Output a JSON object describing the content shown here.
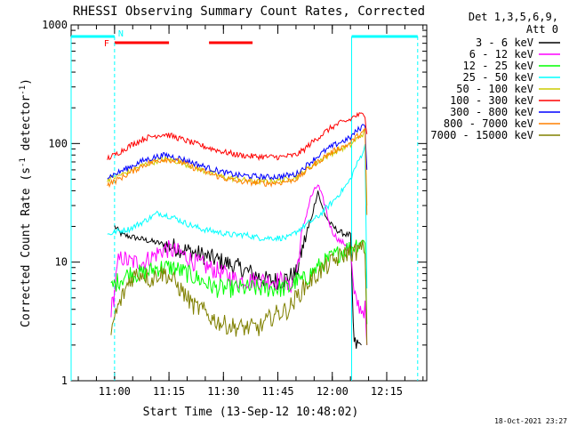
{
  "chart_data": {
    "type": "line",
    "title": "RHESSI Observing Summary Count Rates, Corrected",
    "xlabel": "Start Time (13-Sep-12 10:48:02)",
    "ylabel_pre": "Corrected Count Rate (s",
    "ylabel_mid": " detector",
    "ylabel_post": ")",
    "ylabel_sup": "-1",
    "y_scale": "log",
    "ylim": [
      1,
      1000
    ],
    "xlim_minutes": [
      0,
      98
    ],
    "x_ticks": [
      {
        "label": "11:00",
        "minute": 11.97
      },
      {
        "label": "11:15",
        "minute": 26.97
      },
      {
        "label": "11:30",
        "minute": 41.97
      },
      {
        "label": "11:45",
        "minute": 56.97
      },
      {
        "label": "12:00",
        "minute": 71.97
      },
      {
        "label": "12:15",
        "minute": 86.97
      }
    ],
    "y_ticks": [
      {
        "label": "1",
        "value": 1
      },
      {
        "label": "10",
        "value": 10
      },
      {
        "label": "100",
        "value": 100
      },
      {
        "label": "1000",
        "value": 1000
      }
    ],
    "legend_title_1": "Det 1,3,5,6,9,",
    "legend_title_2": "Att 0",
    "legend_placement": "right",
    "series": [
      {
        "name": "3 - 6 keV",
        "color": "#000000",
        "points": [
          [
            12,
            20
          ],
          [
            14,
            17
          ],
          [
            18,
            16
          ],
          [
            22,
            15
          ],
          [
            26,
            14
          ],
          [
            30,
            13
          ],
          [
            34,
            12
          ],
          [
            38,
            11
          ],
          [
            42,
            10
          ],
          [
            46,
            9
          ],
          [
            50,
            8
          ],
          [
            54,
            7
          ],
          [
            58,
            7
          ],
          [
            62,
            8
          ],
          [
            64,
            14
          ],
          [
            66,
            22
          ],
          [
            67,
            30
          ],
          [
            68,
            40
          ],
          [
            69,
            30
          ],
          [
            70,
            25
          ],
          [
            71,
            22
          ],
          [
            72,
            20
          ],
          [
            74,
            18
          ],
          [
            76,
            17
          ],
          [
            77,
            17
          ],
          [
            77.5,
            5
          ],
          [
            78,
            2
          ],
          [
            80,
            2
          ]
        ]
      },
      {
        "name": "6 - 12 keV",
        "color": "#ff00ff",
        "points": [
          [
            11,
            4
          ],
          [
            11.8,
            5
          ],
          [
            12,
            6
          ],
          [
            13,
            10
          ],
          [
            14,
            11
          ],
          [
            16,
            10
          ],
          [
            20,
            10
          ],
          [
            24,
            12
          ],
          [
            26,
            13
          ],
          [
            30,
            12
          ],
          [
            34,
            10
          ],
          [
            38,
            9
          ],
          [
            42,
            8
          ],
          [
            46,
            7
          ],
          [
            50,
            7
          ],
          [
            54,
            7
          ],
          [
            58,
            7
          ],
          [
            60,
            6
          ],
          [
            62,
            8
          ],
          [
            64,
            20
          ],
          [
            66,
            35
          ],
          [
            68,
            45
          ],
          [
            70,
            30
          ],
          [
            71,
            22
          ],
          [
            72,
            18
          ],
          [
            74,
            15
          ],
          [
            76,
            14
          ],
          [
            77,
            12
          ],
          [
            78,
            5
          ],
          [
            80,
            4
          ],
          [
            81,
            4
          ],
          [
            81.5,
            2
          ]
        ]
      },
      {
        "name": "12 - 25 keV",
        "color": "#00ff00",
        "points": [
          [
            11,
            6
          ],
          [
            13,
            7
          ],
          [
            16,
            8
          ],
          [
            20,
            8
          ],
          [
            24,
            9
          ],
          [
            28,
            9
          ],
          [
            32,
            8
          ],
          [
            36,
            7
          ],
          [
            40,
            6
          ],
          [
            44,
            6
          ],
          [
            48,
            6
          ],
          [
            52,
            6
          ],
          [
            56,
            6
          ],
          [
            60,
            6
          ],
          [
            62,
            7
          ],
          [
            64,
            7
          ],
          [
            66,
            8
          ],
          [
            68,
            9
          ],
          [
            70,
            10
          ],
          [
            72,
            11
          ],
          [
            74,
            12
          ],
          [
            76,
            13
          ],
          [
            77,
            13
          ],
          [
            78,
            14
          ],
          [
            80,
            15
          ],
          [
            81,
            15
          ],
          [
            81.5,
            3
          ]
        ]
      },
      {
        "name": "25 - 50 keV",
        "color": "#00ffff",
        "points": [
          [
            10,
            17
          ],
          [
            12,
            18
          ],
          [
            16,
            19
          ],
          [
            20,
            22
          ],
          [
            24,
            26
          ],
          [
            28,
            24
          ],
          [
            32,
            21
          ],
          [
            36,
            19
          ],
          [
            40,
            18
          ],
          [
            44,
            17
          ],
          [
            48,
            17
          ],
          [
            52,
            16
          ],
          [
            56,
            16
          ],
          [
            60,
            16
          ],
          [
            62,
            18
          ],
          [
            64,
            20
          ],
          [
            66,
            22
          ],
          [
            68,
            24
          ],
          [
            70,
            28
          ],
          [
            72,
            32
          ],
          [
            74,
            38
          ],
          [
            76,
            45
          ],
          [
            77,
            50
          ],
          [
            78,
            60
          ],
          [
            80,
            80
          ],
          [
            81,
            95
          ],
          [
            81.5,
            6
          ]
        ]
      },
      {
        "name": "50 - 100 keV",
        "color": "#cccc00",
        "points": [
          [
            10,
            50
          ],
          [
            12,
            52
          ],
          [
            16,
            58
          ],
          [
            20,
            66
          ],
          [
            24,
            72
          ],
          [
            26,
            74
          ],
          [
            30,
            70
          ],
          [
            34,
            63
          ],
          [
            38,
            57
          ],
          [
            42,
            52
          ],
          [
            46,
            50
          ],
          [
            50,
            48
          ],
          [
            54,
            48
          ],
          [
            58,
            49
          ],
          [
            62,
            52
          ],
          [
            64,
            58
          ],
          [
            66,
            64
          ],
          [
            68,
            70
          ],
          [
            70,
            77
          ],
          [
            72,
            83
          ],
          [
            74,
            89
          ],
          [
            76,
            94
          ],
          [
            77,
            97
          ],
          [
            78,
            105
          ],
          [
            80,
            118
          ],
          [
            81,
            125
          ],
          [
            81.5,
            30
          ]
        ]
      },
      {
        "name": "100 - 300 keV",
        "color": "#ff0000",
        "points": [
          [
            10,
            75
          ],
          [
            12,
            80
          ],
          [
            16,
            95
          ],
          [
            20,
            110
          ],
          [
            24,
            118
          ],
          [
            26,
            120
          ],
          [
            30,
            110
          ],
          [
            34,
            100
          ],
          [
            38,
            92
          ],
          [
            42,
            85
          ],
          [
            46,
            80
          ],
          [
            50,
            78
          ],
          [
            54,
            77
          ],
          [
            58,
            77
          ],
          [
            62,
            80
          ],
          [
            64,
            88
          ],
          [
            66,
            100
          ],
          [
            68,
            112
          ],
          [
            70,
            125
          ],
          [
            72,
            138
          ],
          [
            74,
            148
          ],
          [
            76,
            155
          ],
          [
            77,
            160
          ],
          [
            78,
            170
          ],
          [
            80,
            175
          ],
          [
            81,
            175
          ],
          [
            81.5,
            120
          ]
        ]
      },
      {
        "name": "300 - 800 keV",
        "color": "#0000ff",
        "points": [
          [
            10,
            52
          ],
          [
            12,
            55
          ],
          [
            16,
            63
          ],
          [
            20,
            72
          ],
          [
            24,
            78
          ],
          [
            26,
            80
          ],
          [
            30,
            75
          ],
          [
            34,
            68
          ],
          [
            38,
            62
          ],
          [
            42,
            57
          ],
          [
            46,
            54
          ],
          [
            50,
            53
          ],
          [
            54,
            52
          ],
          [
            58,
            53
          ],
          [
            62,
            55
          ],
          [
            64,
            62
          ],
          [
            66,
            70
          ],
          [
            68,
            78
          ],
          [
            70,
            87
          ],
          [
            72,
            95
          ],
          [
            74,
            102
          ],
          [
            76,
            108
          ],
          [
            77,
            112
          ],
          [
            78,
            122
          ],
          [
            80,
            138
          ],
          [
            81,
            145
          ],
          [
            81.5,
            60
          ]
        ]
      },
      {
        "name": "800 - 7000 keV",
        "color": "#ff8000",
        "points": [
          [
            10,
            45
          ],
          [
            12,
            48
          ],
          [
            16,
            56
          ],
          [
            20,
            66
          ],
          [
            24,
            72
          ],
          [
            26,
            74
          ],
          [
            30,
            70
          ],
          [
            34,
            62
          ],
          [
            38,
            56
          ],
          [
            42,
            51
          ],
          [
            46,
            48
          ],
          [
            50,
            47
          ],
          [
            54,
            46
          ],
          [
            58,
            47
          ],
          [
            62,
            50
          ],
          [
            64,
            56
          ],
          [
            66,
            63
          ],
          [
            68,
            70
          ],
          [
            70,
            78
          ],
          [
            72,
            85
          ],
          [
            74,
            92
          ],
          [
            76,
            97
          ],
          [
            77,
            101
          ],
          [
            78,
            110
          ],
          [
            80,
            122
          ],
          [
            81,
            128
          ],
          [
            81.5,
            25
          ]
        ]
      },
      {
        "name": "7000 - 15000 keV",
        "color": "#808000",
        "points": [
          [
            11,
            2.5
          ],
          [
            12,
            3.5
          ],
          [
            14,
            5
          ],
          [
            16,
            7
          ],
          [
            18,
            8
          ],
          [
            20,
            8
          ],
          [
            22,
            7
          ],
          [
            24,
            8
          ],
          [
            26,
            8
          ],
          [
            28,
            7
          ],
          [
            30,
            6
          ],
          [
            32,
            5
          ],
          [
            34,
            4.2
          ],
          [
            36,
            4
          ],
          [
            38,
            3.5
          ],
          [
            40,
            3.2
          ],
          [
            42,
            3
          ],
          [
            44,
            2.9
          ],
          [
            46,
            2.8
          ],
          [
            48,
            2.8
          ],
          [
            50,
            2.8
          ],
          [
            52,
            2.8
          ],
          [
            54,
            3.2
          ],
          [
            56,
            3.6
          ],
          [
            58,
            3.8
          ],
          [
            60,
            4
          ],
          [
            62,
            5
          ],
          [
            64,
            6
          ],
          [
            66,
            7
          ],
          [
            68,
            8
          ],
          [
            70,
            9
          ],
          [
            72,
            10
          ],
          [
            74,
            11
          ],
          [
            76,
            12
          ],
          [
            78,
            12
          ],
          [
            80,
            13
          ],
          [
            81,
            13
          ],
          [
            81.5,
            2
          ]
        ]
      }
    ],
    "annotations": {
      "flags": [
        {
          "label": "N",
          "color": "#00ffff"
        },
        {
          "label": "F",
          "color": "#ff0000"
        }
      ],
      "night_bars_minutes": [
        [
          0,
          11.97
        ],
        [
          77.3,
          95.5
        ]
      ],
      "flare_bars_minutes": [
        [
          11.97,
          26.97
        ],
        [
          38,
          50
        ]
      ],
      "dashed_vertical_minutes": [
        11.97,
        95.5
      ],
      "solid_vertical_minutes": [
        0,
        77.3
      ]
    }
  },
  "footer": {
    "timestamp": "18-Oct-2021 23:27"
  }
}
